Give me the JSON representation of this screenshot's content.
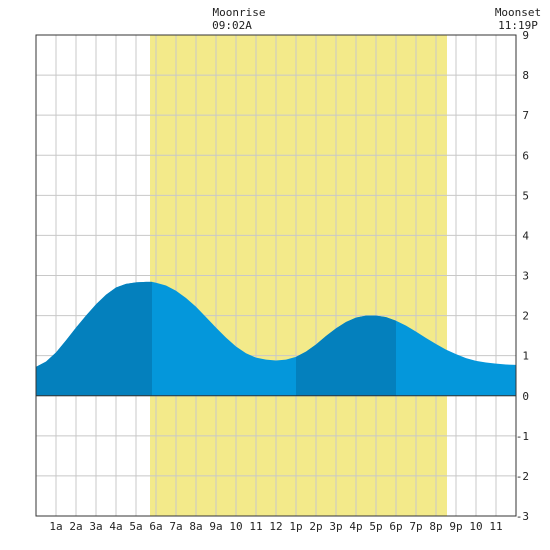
{
  "header": {
    "moonrise_label": "Moonrise",
    "moonrise_time": "09:02A",
    "moonset_label": "Moonset",
    "moonset_time": "11:19P"
  },
  "chart_data": {
    "type": "area",
    "title": "",
    "xlabel": "",
    "ylabel": "",
    "x_unit": "hours since midnight",
    "xlim": [
      0,
      24
    ],
    "ylim": [
      -3,
      9
    ],
    "y_ticks": [
      9,
      8,
      7,
      6,
      5,
      4,
      3,
      2,
      1,
      0,
      -1,
      -2,
      -3
    ],
    "x_ticks": [
      {
        "x": 1,
        "label": "1a"
      },
      {
        "x": 2,
        "label": "2a"
      },
      {
        "x": 3,
        "label": "3a"
      },
      {
        "x": 4,
        "label": "4a"
      },
      {
        "x": 5,
        "label": "5a"
      },
      {
        "x": 6,
        "label": "6a"
      },
      {
        "x": 7,
        "label": "7a"
      },
      {
        "x": 8,
        "label": "8a"
      },
      {
        "x": 9,
        "label": "9a"
      },
      {
        "x": 10,
        "label": "10"
      },
      {
        "x": 11,
        "label": "11"
      },
      {
        "x": 12,
        "label": "12"
      },
      {
        "x": 13,
        "label": "1p"
      },
      {
        "x": 14,
        "label": "2p"
      },
      {
        "x": 15,
        "label": "3p"
      },
      {
        "x": 16,
        "label": "4p"
      },
      {
        "x": 17,
        "label": "5p"
      },
      {
        "x": 18,
        "label": "6p"
      },
      {
        "x": 19,
        "label": "7p"
      },
      {
        "x": 20,
        "label": "8p"
      },
      {
        "x": 21,
        "label": "9p"
      },
      {
        "x": 22,
        "label": "10"
      },
      {
        "x": 23,
        "label": "11"
      }
    ],
    "grid": true,
    "daylight_band": {
      "start": 5.7,
      "end": 20.55
    },
    "tide_series": {
      "x": [
        0,
        0.5,
        1,
        1.5,
        2,
        2.5,
        3,
        3.5,
        4,
        4.5,
        5,
        5.5,
        5.8,
        6,
        6.5,
        7,
        7.5,
        8,
        8.5,
        9,
        9.5,
        10,
        10.5,
        11,
        11.5,
        12,
        12.5,
        13,
        13.5,
        14,
        14.5,
        15,
        15.5,
        16,
        16.5,
        17,
        17.5,
        18,
        18.5,
        19,
        19.5,
        20,
        20.5,
        21,
        21.5,
        22,
        22.5,
        23,
        23.5,
        24
      ],
      "y": [
        0.72,
        0.85,
        1.08,
        1.38,
        1.7,
        2.0,
        2.28,
        2.52,
        2.7,
        2.79,
        2.83,
        2.84,
        2.84,
        2.82,
        2.75,
        2.62,
        2.44,
        2.22,
        1.96,
        1.7,
        1.45,
        1.23,
        1.06,
        0.95,
        0.9,
        0.88,
        0.9,
        0.97,
        1.1,
        1.28,
        1.49,
        1.68,
        1.84,
        1.95,
        2.0,
        2.0,
        1.96,
        1.87,
        1.75,
        1.6,
        1.44,
        1.29,
        1.15,
        1.04,
        0.94,
        0.87,
        0.83,
        0.8,
        0.78,
        0.77
      ]
    },
    "dark_segments": [
      {
        "start": 0,
        "end": 5.8
      },
      {
        "start": 13.0,
        "end": 18.0
      }
    ],
    "colors": {
      "daylight": "#f3ea8a",
      "tide": "#0497db",
      "tide_dark": "#0480bd",
      "grid": "#c8c8c8",
      "axis": "#333333"
    }
  }
}
